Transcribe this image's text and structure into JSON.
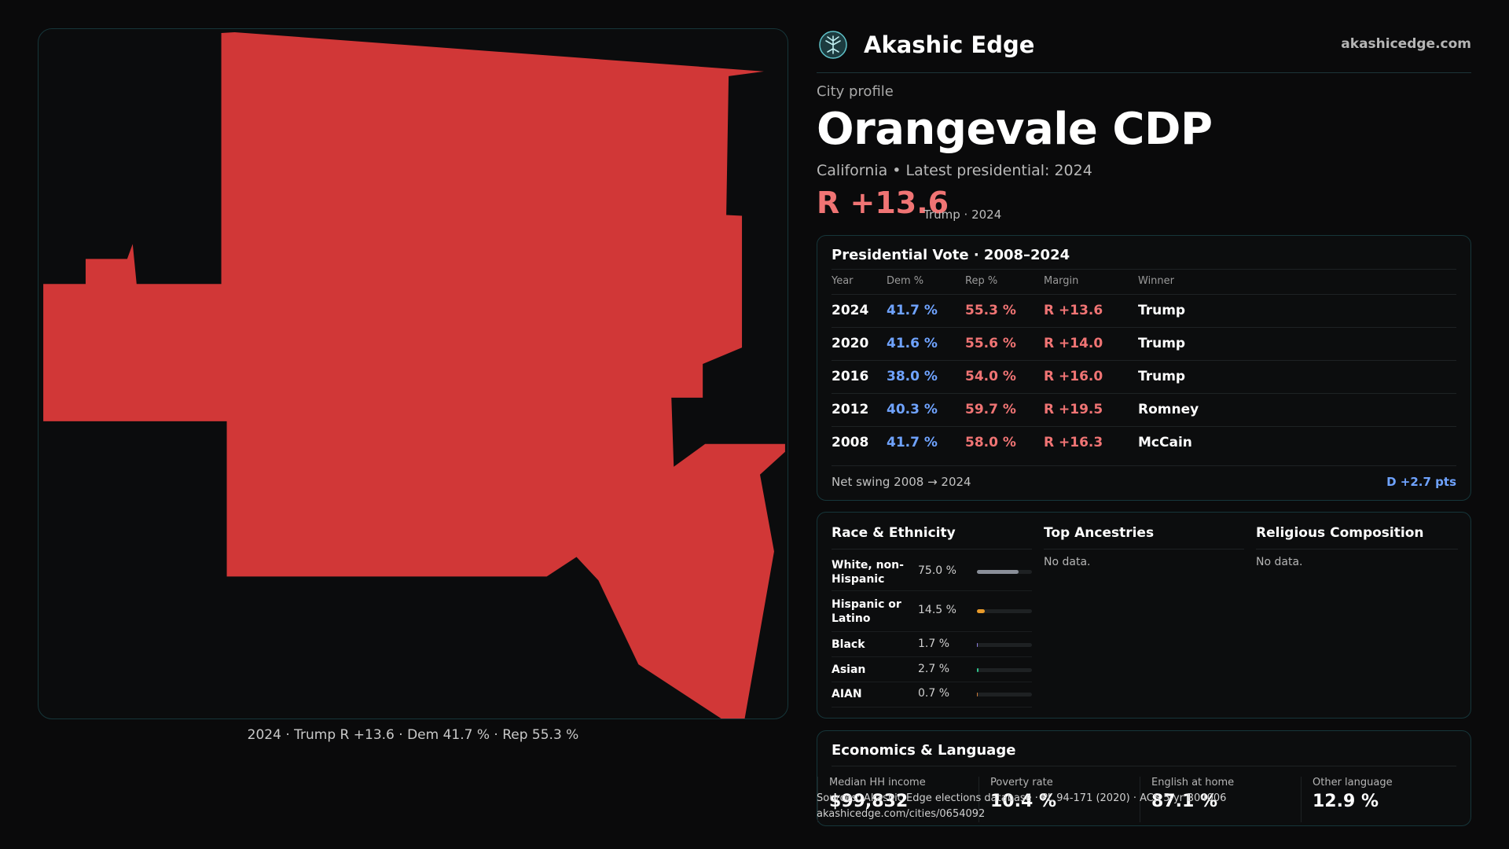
{
  "map": {
    "caption": "2024 · Trump R +13.6 · Dem 41.7 % · Rep 55.3 %",
    "fill_color": "#d13737"
  },
  "brand": {
    "name": "Akashic Edge",
    "url": "akashicedge.com",
    "logo_icon": "tree-emblem-icon"
  },
  "profile": {
    "kicker": "City profile",
    "title": "Orangevale CDP",
    "subline": "California • Latest presidential: 2024",
    "margin": "R +13.6",
    "margin_note": "Trump · 2024"
  },
  "presidential": {
    "title": "Presidential Vote · 2008–2024",
    "columns": [
      "Year",
      "Dem %",
      "Rep %",
      "Margin",
      "Winner"
    ],
    "rows": [
      {
        "year": "2024",
        "dem": "41.7 %",
        "rep": "55.3 %",
        "margin": "R +13.6",
        "winner": "Trump"
      },
      {
        "year": "2020",
        "dem": "41.6 %",
        "rep": "55.6 %",
        "margin": "R +14.0",
        "winner": "Trump"
      },
      {
        "year": "2016",
        "dem": "38.0 %",
        "rep": "54.0 %",
        "margin": "R +16.0",
        "winner": "Trump"
      },
      {
        "year": "2012",
        "dem": "40.3 %",
        "rep": "59.7 %",
        "margin": "R +19.5",
        "winner": "Romney"
      },
      {
        "year": "2008",
        "dem": "41.7 %",
        "rep": "58.0 %",
        "margin": "R +16.3",
        "winner": "McCain"
      }
    ],
    "swing_label": "Net swing 2008 → 2024",
    "swing_value": "D +2.7 pts"
  },
  "race": {
    "title": "Race & Ethnicity",
    "items": [
      {
        "name": "White, non-Hispanic",
        "pct": "75.0 %",
        "value": 75.0,
        "color": "#8a8f99"
      },
      {
        "name": "Hispanic or Latino",
        "pct": "14.5 %",
        "value": 14.5,
        "color": "#e89a2a"
      },
      {
        "name": "Black",
        "pct": "1.7 %",
        "value": 1.7,
        "color": "#8f7fe0"
      },
      {
        "name": "Asian",
        "pct": "2.7 %",
        "value": 2.7,
        "color": "#2fc28a"
      },
      {
        "name": "AIAN",
        "pct": "0.7 %",
        "value": 0.7,
        "color": "#c97a3a"
      }
    ]
  },
  "ancestries": {
    "title": "Top Ancestries",
    "empty": "No data."
  },
  "religion": {
    "title": "Religious Composition",
    "empty": "No data."
  },
  "economics": {
    "title": "Economics & Language",
    "stats": [
      {
        "label": "Median HH income",
        "value": "$99,832"
      },
      {
        "label": "Poverty rate",
        "value": "10.4 %"
      },
      {
        "label": "English at home",
        "value": "87.1 %"
      },
      {
        "label": "Other language",
        "value": "12.9 %"
      }
    ]
  },
  "sources": {
    "line1": "Sources: Akashic Edge elections database · PL 94-171 (2020) · ACS 5-yr B04006",
    "line2": "akashicedge.com/cities/0654092"
  }
}
